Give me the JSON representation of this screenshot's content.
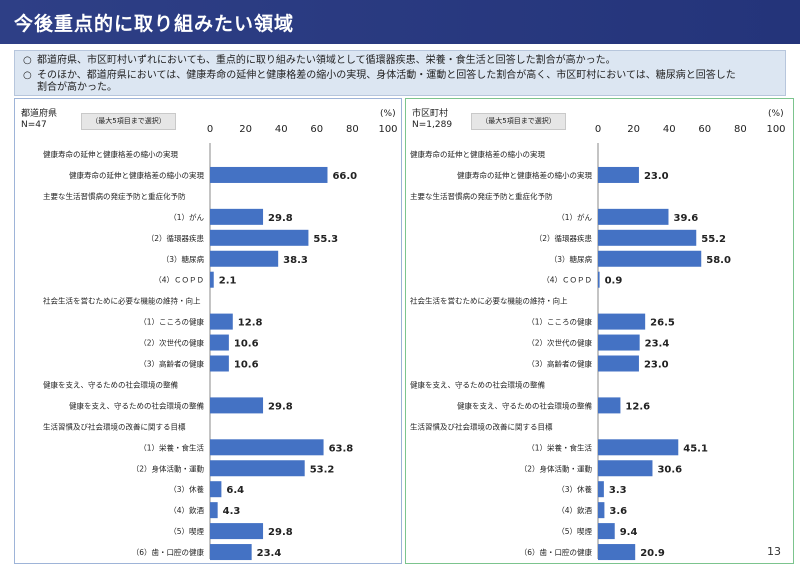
{
  "page_title": "今後重点的に取り組みたい領域",
  "summary": [
    {
      "mark": "○",
      "text": "都道府県、市区町村いずれにおいても、重点的に取り組みたい領域として循環器疾患、栄養・食生活と回答した割合が高かった。"
    },
    {
      "mark": "○",
      "text": "そのほか、都道府県においては、健康寿命の延伸と健康格差の縮小の実現、身体活動・運動と回答した割合が高く、市区町村においては、糖尿病と回答した"
    },
    {
      "mark": "",
      "text": "割合が高かった。"
    }
  ],
  "page_number": "13",
  "colors": {
    "bar": "#4472c4",
    "header": "#2e3f86",
    "summary_bg": "#dce6f2"
  },
  "chart_data": [
    {
      "type": "bar",
      "orientation": "horizontal",
      "group": "都道府県",
      "n_label": "N=47",
      "note": "（最大5項目まで選択）",
      "unit": "(%)",
      "xlim": [
        0,
        100
      ],
      "ticks": [
        "0",
        "20",
        "40",
        "60",
        "80",
        "100"
      ],
      "rows": [
        {
          "label": "健康寿命の延伸と健康格差の縮小の実現",
          "heading": true
        },
        {
          "label": "健康寿命の延伸と健康格差の縮小の実現",
          "value": 66.0,
          "display": "66.0"
        },
        {
          "label": "主要な生活習慣病の発症予防と重症化予防",
          "heading": true
        },
        {
          "label": "（1）がん",
          "value": 29.8,
          "display": "29.8"
        },
        {
          "label": "（2）循環器疾患",
          "value": 55.3,
          "display": "55.3"
        },
        {
          "label": "（3）糖尿病",
          "value": 38.3,
          "display": "38.3"
        },
        {
          "label": "（4）ＣＯＰＤ",
          "value": 2.1,
          "display": "2.1"
        },
        {
          "label": "社会生活を営むために必要な機能の維持・向上",
          "heading": true
        },
        {
          "label": "（1）こころの健康",
          "value": 12.8,
          "display": "12.8"
        },
        {
          "label": "（2）次世代の健康",
          "value": 10.6,
          "display": "10.6"
        },
        {
          "label": "（3）高齢者の健康",
          "value": 10.6,
          "display": "10.6"
        },
        {
          "label": "健康を支え、守るための社会環境の整備",
          "heading": true
        },
        {
          "label": "健康を支え、守るための社会環境の整備",
          "value": 29.8,
          "display": "29.8"
        },
        {
          "label": "生活習慣及び社会環境の改善に関する目標",
          "heading": true
        },
        {
          "label": "（1）栄養・食生活",
          "value": 63.8,
          "display": "63.8"
        },
        {
          "label": "（2）身体活動・運動",
          "value": 53.2,
          "display": "53.2"
        },
        {
          "label": "（3）休養",
          "value": 6.4,
          "display": "6.4"
        },
        {
          "label": "（4）飲酒",
          "value": 4.3,
          "display": "4.3"
        },
        {
          "label": "（5）喫煙",
          "value": 29.8,
          "display": "29.8"
        },
        {
          "label": "（6）歯・口腔の健康",
          "value": 23.4,
          "display": "23.4"
        }
      ]
    },
    {
      "type": "bar",
      "orientation": "horizontal",
      "group": "市区町村",
      "n_label": "N=1,289",
      "note": "（最大5項目まで選択）",
      "unit": "(%)",
      "xlim": [
        0,
        100
      ],
      "ticks": [
        "0",
        "20",
        "40",
        "60",
        "80",
        "100"
      ],
      "rows": [
        {
          "label": "健康寿命の延伸と健康格差の縮小の実現",
          "heading": true
        },
        {
          "label": "健康寿命の延伸と健康格差の縮小の実現",
          "value": 23.0,
          "display": "23.0"
        },
        {
          "label": "主要な生活習慣病の発症予防と重症化予防",
          "heading": true
        },
        {
          "label": "（1）がん",
          "value": 39.6,
          "display": "39.6"
        },
        {
          "label": "（2）循環器疾患",
          "value": 55.2,
          "display": "55.2"
        },
        {
          "label": "（3）糖尿病",
          "value": 58.0,
          "display": "58.0"
        },
        {
          "label": "（4）ＣＯＰＤ",
          "value": 0.9,
          "display": "0.9"
        },
        {
          "label": "社会生活を営むために必要な機能の維持・向上",
          "heading": true
        },
        {
          "label": "（1）こころの健康",
          "value": 26.5,
          "display": "26.5"
        },
        {
          "label": "（2）次世代の健康",
          "value": 23.4,
          "display": "23.4"
        },
        {
          "label": "（3）高齢者の健康",
          "value": 23.0,
          "display": "23.0"
        },
        {
          "label": "健康を支え、守るための社会環境の整備",
          "heading": true
        },
        {
          "label": "健康を支え、守るための社会環境の整備",
          "value": 12.6,
          "display": "12.6"
        },
        {
          "label": "生活習慣及び社会環境の改善に関する目標",
          "heading": true
        },
        {
          "label": "（1）栄養・食生活",
          "value": 45.1,
          "display": "45.1"
        },
        {
          "label": "（2）身体活動・運動",
          "value": 30.6,
          "display": "30.6"
        },
        {
          "label": "（3）休養",
          "value": 3.3,
          "display": "3.3"
        },
        {
          "label": "（4）飲酒",
          "value": 3.6,
          "display": "3.6"
        },
        {
          "label": "（5）喫煙",
          "value": 9.4,
          "display": "9.4"
        },
        {
          "label": "（6）歯・口腔の健康",
          "value": 20.9,
          "display": "20.9"
        }
      ]
    }
  ]
}
